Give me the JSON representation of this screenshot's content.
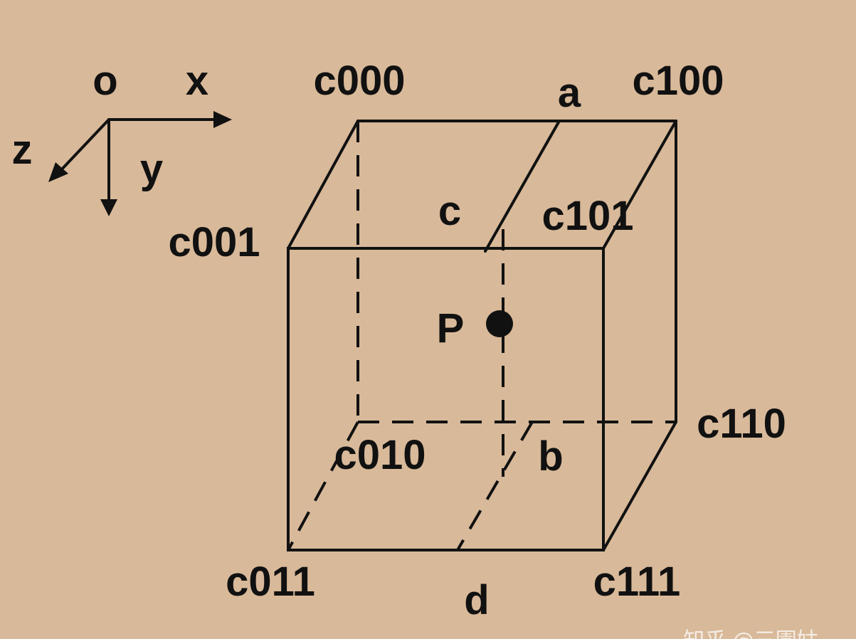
{
  "colors": {
    "background": "#d8b999",
    "stroke": "#111111"
  },
  "axes": {
    "origin": "o",
    "x": "x",
    "y": "y",
    "z": "z"
  },
  "vertices": {
    "c000": "c000",
    "c100": "c100",
    "c001": "c001",
    "c101": "c101",
    "c010": "c010",
    "c110": "c110",
    "c011": "c011",
    "c111": "c111"
  },
  "points": {
    "a": "a",
    "b": "b",
    "c": "c",
    "d": "d",
    "p": "P"
  },
  "watermark": "知乎 @三園姑"
}
